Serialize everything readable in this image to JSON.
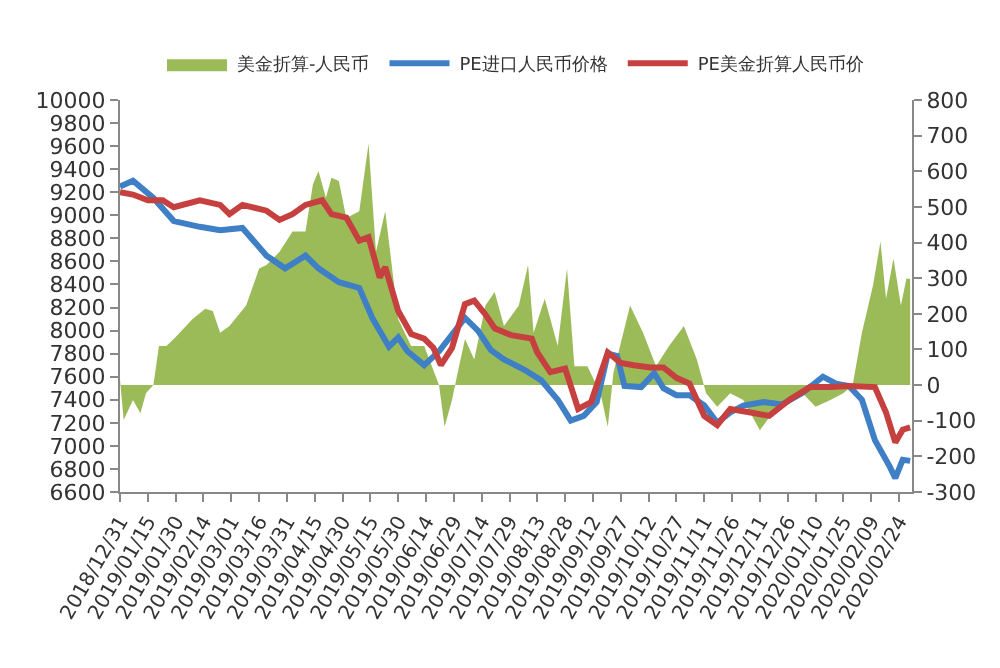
{
  "chart_data": {
    "type": "line",
    "legend": "top",
    "grid": false,
    "marker": "none",
    "line_style": "solid",
    "xlim": [
      "2018-12-31",
      "2020-03-02"
    ],
    "xticks": [
      {
        "value": "2018-12-31",
        "label": "2018/12/31"
      },
      {
        "value": "2019-01-15",
        "label": "2019/01/15"
      },
      {
        "value": "2019-01-30",
        "label": "2019/01/30"
      },
      {
        "value": "2019-02-14",
        "label": "2019/02/14"
      },
      {
        "value": "2019-03-01",
        "label": "2019/03/01"
      },
      {
        "value": "2019-03-16",
        "label": "2019/03/16"
      },
      {
        "value": "2019-03-31",
        "label": "2019/03/31"
      },
      {
        "value": "2019-04-15",
        "label": "2019/04/15"
      },
      {
        "value": "2019-04-30",
        "label": "2019/04/30"
      },
      {
        "value": "2019-05-15",
        "label": "2019/05/15"
      },
      {
        "value": "2019-05-30",
        "label": "2019/05/30"
      },
      {
        "value": "2019-06-14",
        "label": "2019/06/14"
      },
      {
        "value": "2019-06-29",
        "label": "2019/06/29"
      },
      {
        "value": "2019-07-14",
        "label": "2019/07/14"
      },
      {
        "value": "2019-07-29",
        "label": "2019/07/29"
      },
      {
        "value": "2019-08-13",
        "label": "2019/08/13"
      },
      {
        "value": "2019-08-28",
        "label": "2019/08/28"
      },
      {
        "value": "2019-09-12",
        "label": "2019/09/12"
      },
      {
        "value": "2019-09-27",
        "label": "2019/09/27"
      },
      {
        "value": "2019-10-12",
        "label": "2019/10/12"
      },
      {
        "value": "2019-10-27",
        "label": "2019/10/27"
      },
      {
        "value": "2019-11-11",
        "label": "2019/11/11"
      },
      {
        "value": "2019-11-26",
        "label": "2019/11/26"
      },
      {
        "value": "2019-12-11",
        "label": "2019/12/11"
      },
      {
        "value": "2019-12-26",
        "label": "2019/12/26"
      },
      {
        "value": "2020-01-10",
        "label": "2020/01/10"
      },
      {
        "value": "2020-01-25",
        "label": "2020/01/25"
      },
      {
        "value": "2020-02-09",
        "label": "2020/02/09"
      },
      {
        "value": "2020-02-24",
        "label": "2020/02/24"
      }
    ],
    "ylim": [
      6600,
      10000
    ],
    "yticks": [
      6600,
      6800,
      7000,
      7200,
      7400,
      7600,
      7800,
      8000,
      8200,
      8400,
      8600,
      8800,
      9000,
      9200,
      9400,
      9600,
      9800,
      10000
    ],
    "y2lim": [
      -300,
      800
    ],
    "y2ticks": [
      -300,
      -200,
      -100,
      0,
      100,
      200,
      300,
      400,
      500,
      600,
      700,
      800
    ],
    "series": [
      {
        "name": "美金折算-人民币",
        "type": "area",
        "axis": "y2",
        "color": "#9bbb59",
        "x": [
          "2018-12-31",
          "2019-01-02",
          "2019-01-07",
          "2019-01-11",
          "2019-01-14",
          "2019-01-18",
          "2019-01-21",
          "2019-01-25",
          "2019-01-29",
          "2019-02-08",
          "2019-02-15",
          "2019-02-19",
          "2019-02-23",
          "2019-02-28",
          "2019-03-09",
          "2019-03-16",
          "2019-03-20",
          "2019-03-27",
          "2019-04-03",
          "2019-04-10",
          "2019-04-14",
          "2019-04-17",
          "2019-04-21",
          "2019-04-24",
          "2019-04-28",
          "2019-05-02",
          "2019-05-09",
          "2019-05-14",
          "2019-05-18",
          "2019-05-23",
          "2019-05-30",
          "2019-06-06",
          "2019-06-13",
          "2019-06-21",
          "2019-06-24",
          "2019-06-28",
          "2019-07-01",
          "2019-07-05",
          "2019-07-10",
          "2019-07-16",
          "2019-07-21",
          "2019-07-26",
          "2019-08-03",
          "2019-08-08",
          "2019-08-11",
          "2019-08-17",
          "2019-08-24",
          "2019-08-29",
          "2019-09-02",
          "2019-09-09",
          "2019-09-16",
          "2019-09-20",
          "2019-09-23",
          "2019-10-02",
          "2019-10-09",
          "2019-10-16",
          "2019-10-23",
          "2019-10-31",
          "2019-11-07",
          "2019-11-12",
          "2019-11-18",
          "2019-11-25",
          "2019-12-02",
          "2019-12-11",
          "2019-12-20",
          "2019-12-27",
          "2020-01-03",
          "2020-01-10",
          "2020-01-18",
          "2020-01-25",
          "2020-01-30",
          "2020-02-04",
          "2020-02-10",
          "2020-02-14",
          "2020-02-17",
          "2020-02-21",
          "2020-02-25",
          "2020-02-28",
          "2020-03-01"
        ],
        "values": [
          15,
          -98,
          -42,
          -79,
          -23,
          0,
          110,
          110,
          129,
          185,
          214,
          208,
          147,
          166,
          223,
          327,
          337,
          374,
          431,
          431,
          563,
          601,
          526,
          582,
          573,
          469,
          488,
          677,
          374,
          488,
          185,
          110,
          110,
          0,
          -117,
          -42,
          34,
          129,
          72,
          223,
          261,
          166,
          223,
          337,
          147,
          242,
          110,
          327,
          53,
          53,
          -23,
          -117,
          34,
          223,
          147,
          53,
          110,
          166,
          72,
          -23,
          -61,
          -23,
          -42,
          -127,
          -61,
          -42,
          -23,
          -61,
          -42,
          -23,
          0,
          147,
          280,
          403,
          242,
          355,
          223,
          299,
          298
        ]
      },
      {
        "name": "PE进口人民币价格",
        "color": "#3f7fc6",
        "x": [
          "2018-12-31",
          "2019-01-07",
          "2019-01-18",
          "2019-01-29",
          "2019-02-12",
          "2019-02-23",
          "2019-03-07",
          "2019-03-13",
          "2019-03-20",
          "2019-03-30",
          "2019-04-10",
          "2019-04-17",
          "2019-04-28",
          "2019-05-09",
          "2019-05-16",
          "2019-05-25",
          "2019-05-30",
          "2019-06-04",
          "2019-06-13",
          "2019-06-21",
          "2019-07-05",
          "2019-07-12",
          "2019-07-19",
          "2019-07-26",
          "2019-08-06",
          "2019-08-15",
          "2019-08-24",
          "2019-08-31",
          "2019-09-07",
          "2019-09-14",
          "2019-09-20",
          "2019-09-25",
          "2019-09-29",
          "2019-10-08",
          "2019-10-15",
          "2019-10-20",
          "2019-10-27",
          "2019-11-03",
          "2019-11-11",
          "2019-11-18",
          "2019-11-25",
          "2019-12-02",
          "2019-12-13",
          "2019-12-23",
          "2020-01-03",
          "2020-01-14",
          "2020-01-21",
          "2020-01-28",
          "2020-02-04",
          "2020-02-11",
          "2020-02-19",
          "2020-02-22",
          "2020-02-26",
          "2020-03-01"
        ],
        "values": [
          9250,
          9300,
          9150,
          8950,
          8900,
          8870,
          8890,
          8780,
          8650,
          8540,
          8650,
          8540,
          8420,
          8370,
          8110,
          7860,
          7940,
          7820,
          7700,
          7820,
          8110,
          8000,
          7830,
          7750,
          7660,
          7570,
          7400,
          7220,
          7260,
          7380,
          7800,
          7780,
          7520,
          7510,
          7630,
          7500,
          7440,
          7440,
          7350,
          7200,
          7290,
          7350,
          7380,
          7360,
          7460,
          7600,
          7540,
          7520,
          7400,
          7050,
          6820,
          6720,
          6880,
          6870
        ]
      },
      {
        "name": "PE美金折算人民币价",
        "color": "#c6403f",
        "x": [
          "2018-12-31",
          "2019-01-07",
          "2019-01-15",
          "2019-01-23",
          "2019-01-29",
          "2019-02-12",
          "2019-02-23",
          "2019-02-28",
          "2019-03-07",
          "2019-03-20",
          "2019-03-27",
          "2019-04-03",
          "2019-04-10",
          "2019-04-19",
          "2019-04-24",
          "2019-05-02",
          "2019-05-09",
          "2019-05-14",
          "2019-05-20",
          "2019-05-23",
          "2019-05-30",
          "2019-06-06",
          "2019-06-13",
          "2019-06-18",
          "2019-06-22",
          "2019-06-28",
          "2019-07-05",
          "2019-07-10",
          "2019-07-16",
          "2019-07-21",
          "2019-07-30",
          "2019-08-10",
          "2019-08-13",
          "2019-08-20",
          "2019-08-28",
          "2019-09-04",
          "2019-09-11",
          "2019-09-20",
          "2019-09-27",
          "2019-10-04",
          "2019-10-13",
          "2019-10-20",
          "2019-10-27",
          "2019-11-03",
          "2019-11-11",
          "2019-11-18",
          "2019-11-25",
          "2019-12-06",
          "2019-12-16",
          "2019-12-27",
          "2020-01-07",
          "2020-01-18",
          "2020-01-28",
          "2020-02-11",
          "2020-02-17",
          "2020-02-22",
          "2020-02-26",
          "2020-03-01"
        ],
        "values": [
          9200,
          9180,
          9130,
          9130,
          9070,
          9130,
          9090,
          9010,
          9090,
          9040,
          8960,
          9010,
          9090,
          9130,
          9010,
          8980,
          8780,
          8810,
          8460,
          8550,
          8170,
          7970,
          7930,
          7850,
          7700,
          7850,
          8230,
          8260,
          8140,
          8020,
          7960,
          7930,
          7810,
          7640,
          7670,
          7320,
          7380,
          7810,
          7720,
          7700,
          7680,
          7680,
          7590,
          7540,
          7260,
          7180,
          7320,
          7290,
          7260,
          7400,
          7510,
          7510,
          7520,
          7510,
          7290,
          7030,
          7140,
          7160
        ]
      }
    ]
  }
}
